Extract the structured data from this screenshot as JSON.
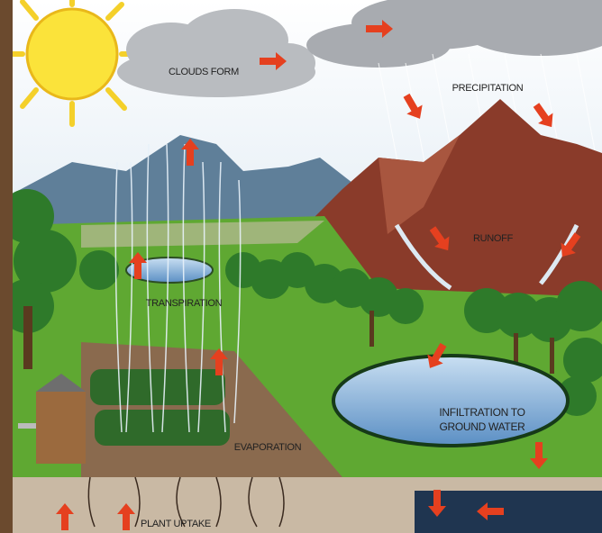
{
  "labels": {
    "clouds_form": "CLOUDS FORM",
    "precipitation": "PRECIPITATION",
    "runoff": "RUNOFF",
    "transpiration": "TRANSPIRATION",
    "evaporation": "EVAPORATION",
    "infiltration": [
      "INFILTRATION TO",
      "GROUND WATER"
    ],
    "plant_uptake": "PLANT UPTAKE"
  }
}
